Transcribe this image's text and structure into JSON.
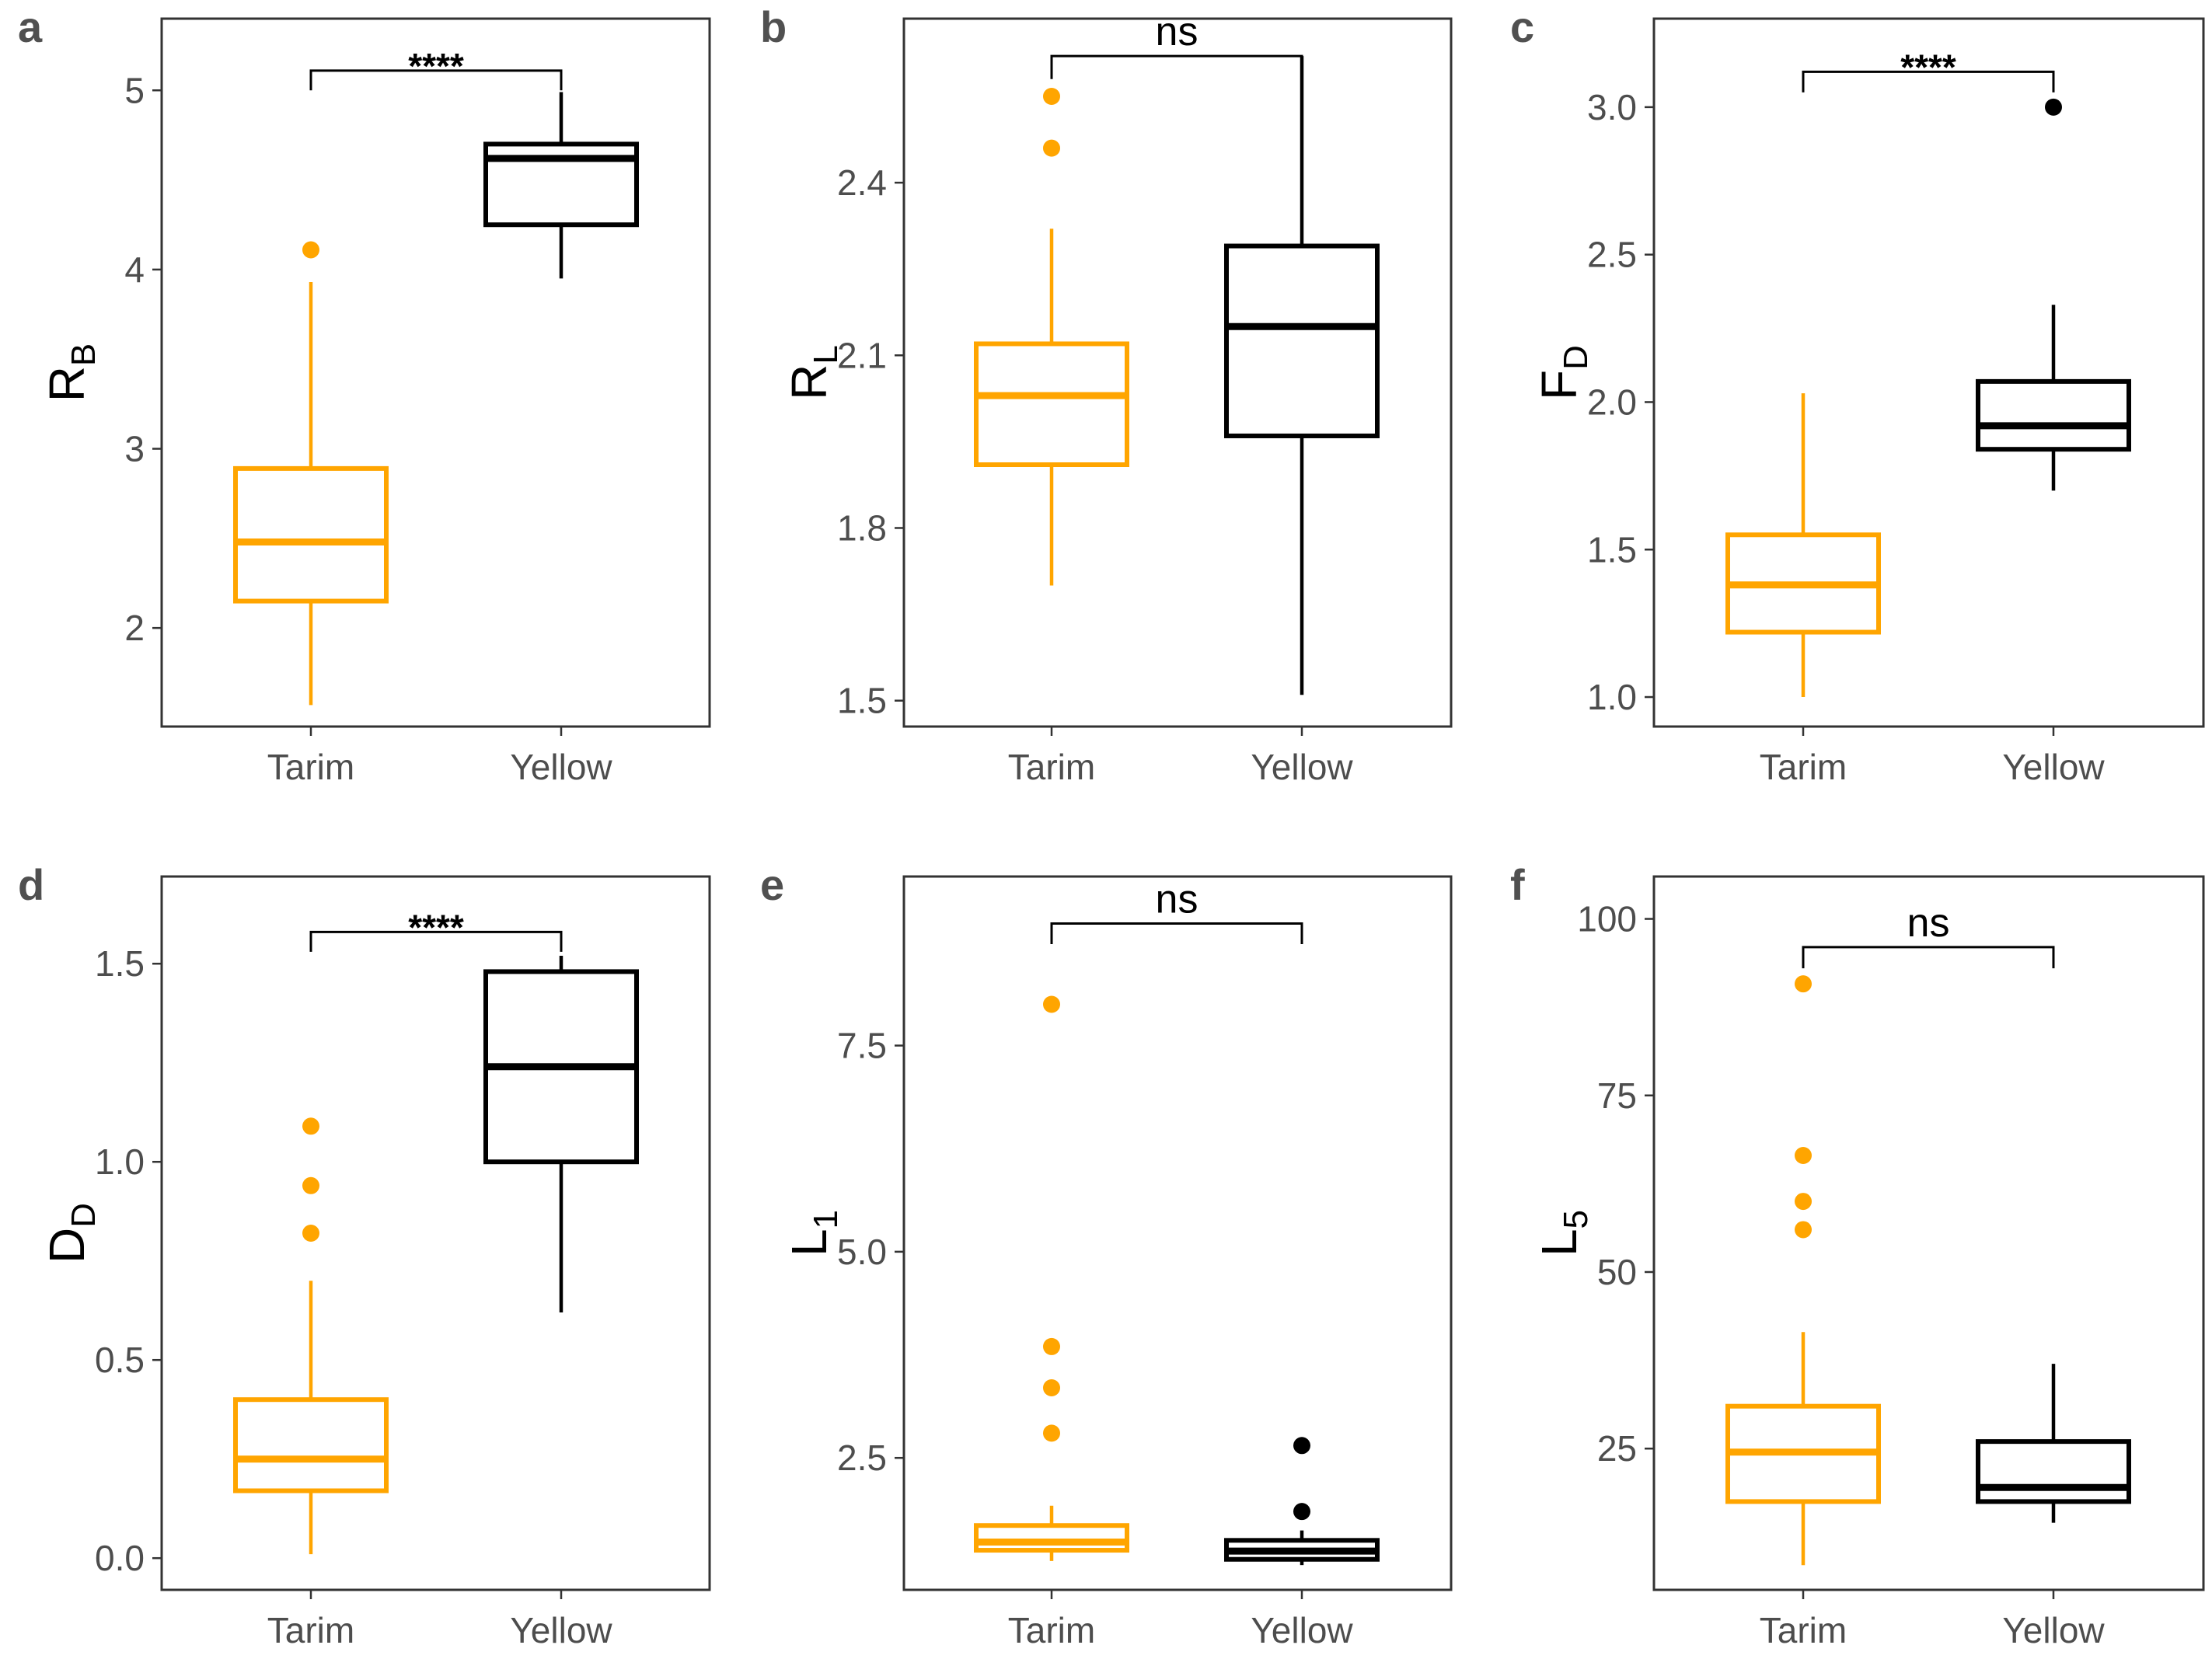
{
  "colors": {
    "tarim": "#FFA500",
    "yellow": "#000000",
    "frame": "#333333"
  },
  "chart_data": [
    {
      "panel": "a",
      "type": "box",
      "ylabel": "R",
      "ylabel_sub": "B",
      "ylim": [
        1.45,
        5.4
      ],
      "yticks": [
        2,
        3,
        4,
        5
      ],
      "categories": [
        "Tarim",
        "Yellow"
      ],
      "boxes": [
        {
          "group": "Tarim",
          "whisker_low": 1.57,
          "q1": 2.15,
          "median": 2.48,
          "q3": 2.89,
          "whisker_high": 3.93,
          "outliers": [
            4.11
          ]
        },
        {
          "group": "Yellow",
          "whisker_low": 3.95,
          "q1": 4.25,
          "median": 4.62,
          "q3": 4.7,
          "whisker_high": 4.99,
          "outliers": []
        }
      ],
      "significance": {
        "label": "****",
        "level": 5.11,
        "drop": 0.11
      }
    },
    {
      "panel": "b",
      "type": "box",
      "ylabel": "R",
      "ylabel_sub": "L",
      "ylim": [
        1.455,
        2.685
      ],
      "yticks": [
        1.5,
        1.8,
        2.1,
        2.4
      ],
      "ytick_labels": [
        "1.5",
        "1.8",
        "2.1",
        "2.4"
      ],
      "categories": [
        "Tarim",
        "Yellow"
      ],
      "boxes": [
        {
          "group": "Tarim",
          "whisker_low": 1.7,
          "q1": 1.91,
          "median": 2.03,
          "q3": 2.12,
          "whisker_high": 2.32,
          "outliers": [
            2.46,
            2.55
          ]
        },
        {
          "group": "Yellow",
          "whisker_low": 1.51,
          "q1": 1.96,
          "median": 2.15,
          "q3": 2.29,
          "whisker_high": 2.62,
          "outliers": []
        }
      ],
      "significance": {
        "label": "ns",
        "level": 2.62,
        "drop": 0.04
      }
    },
    {
      "panel": "c",
      "type": "box",
      "ylabel": "F",
      "ylabel_sub": "D",
      "ylim": [
        0.9,
        3.3
      ],
      "yticks": [
        1.0,
        1.5,
        2.0,
        2.5,
        3.0
      ],
      "ytick_labels": [
        "1.0",
        "1.5",
        "2.0",
        "2.5",
        "3.0"
      ],
      "categories": [
        "Tarim",
        "Yellow"
      ],
      "boxes": [
        {
          "group": "Tarim",
          "whisker_low": 1.0,
          "q1": 1.22,
          "median": 1.38,
          "q3": 1.55,
          "whisker_high": 2.03,
          "outliers": []
        },
        {
          "group": "Yellow",
          "whisker_low": 1.7,
          "q1": 1.84,
          "median": 1.92,
          "q3": 2.07,
          "whisker_high": 2.33,
          "outliers": [
            3.0
          ]
        }
      ],
      "significance": {
        "label": "****",
        "level": 3.12,
        "drop": 0.07
      }
    },
    {
      "panel": "d",
      "type": "box",
      "ylabel": "D",
      "ylabel_sub": "D",
      "ylim": [
        -0.08,
        1.72
      ],
      "yticks": [
        0.0,
        0.5,
        1.0,
        1.5
      ],
      "ytick_labels": [
        "0.0",
        "0.5",
        "1.0",
        "1.5"
      ],
      "categories": [
        "Tarim",
        "Yellow"
      ],
      "boxes": [
        {
          "group": "Tarim",
          "whisker_low": 0.01,
          "q1": 0.17,
          "median": 0.25,
          "q3": 0.4,
          "whisker_high": 0.7,
          "outliers": [
            0.82,
            0.94,
            1.09
          ]
        },
        {
          "group": "Yellow",
          "whisker_low": 0.62,
          "q1": 1.0,
          "median": 1.24,
          "q3": 1.48,
          "whisker_high": 1.52,
          "outliers": []
        }
      ],
      "significance": {
        "label": "****",
        "level": 1.58,
        "drop": 0.05
      }
    },
    {
      "panel": "e",
      "type": "box",
      "ylabel": "L",
      "ylabel_sub": "1",
      "ylim": [
        0.9,
        9.55
      ],
      "yticks": [
        2.5,
        5.0,
        7.5
      ],
      "ytick_labels": [
        "2.5",
        "5.0",
        "7.5"
      ],
      "categories": [
        "Tarim",
        "Yellow"
      ],
      "boxes": [
        {
          "group": "Tarim",
          "whisker_low": 1.25,
          "q1": 1.38,
          "median": 1.48,
          "q3": 1.68,
          "whisker_high": 1.92,
          "outliers": [
            2.8,
            3.35,
            3.85,
            8.0
          ]
        },
        {
          "group": "Yellow",
          "whisker_low": 1.2,
          "q1": 1.27,
          "median": 1.37,
          "q3": 1.5,
          "whisker_high": 1.62,
          "outliers": [
            1.85,
            2.65
          ]
        }
      ],
      "significance": {
        "label": "ns",
        "level": 8.98,
        "drop": 0.25
      }
    },
    {
      "panel": "f",
      "type": "box",
      "ylabel": "L",
      "ylabel_sub": "5",
      "ylim": [
        5,
        106
      ],
      "yticks": [
        25,
        50,
        75,
        100
      ],
      "categories": [
        "Tarim",
        "Yellow"
      ],
      "boxes": [
        {
          "group": "Tarim",
          "whisker_low": 8.5,
          "q1": 17.5,
          "median": 24.5,
          "q3": 31.0,
          "whisker_high": 41.5,
          "outliers": [
            56,
            60,
            66.5,
            90.8
          ]
        },
        {
          "group": "Yellow",
          "whisker_low": 14.5,
          "q1": 17.5,
          "median": 19.5,
          "q3": 26.0,
          "whisker_high": 37.0,
          "outliers": []
        }
      ],
      "significance": {
        "label": "ns",
        "level": 96,
        "drop": 3
      }
    }
  ]
}
